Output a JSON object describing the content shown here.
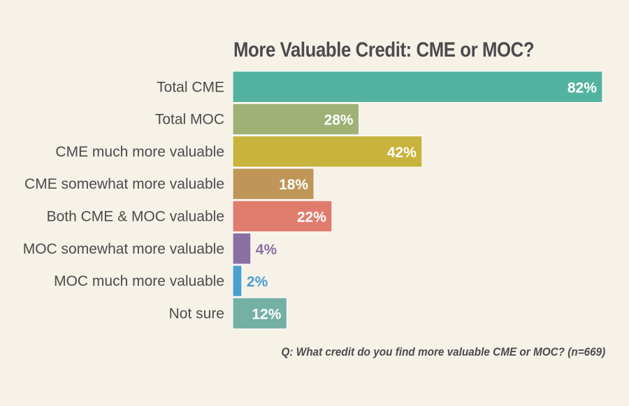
{
  "chart_data": {
    "type": "bar",
    "orientation": "horizontal",
    "title": "More Valuable Credit: CME or MOC?",
    "xlabel": "",
    "ylabel": "",
    "xlim": [
      0,
      100
    ],
    "grid": false,
    "unit": "%",
    "categories": [
      "Total CME",
      "Total MOC",
      "CME much more valuable",
      "CME somewhat more valuable",
      "Both CME & MOC valuable",
      "MOC somewhat more valuable",
      "MOC much more valuable",
      "Not sure"
    ],
    "values": [
      82,
      28,
      42,
      18,
      22,
      4,
      2,
      12
    ],
    "value_labels": [
      "82%",
      "28%",
      "42%",
      "18%",
      "22%",
      "4%",
      "2%",
      "12%"
    ],
    "colors": [
      "#54b3a0",
      "#9fb175",
      "#c8b43c",
      "#bf9658",
      "#e07c6c",
      "#8b6fa1",
      "#4a9fcf",
      "#75b0a5"
    ],
    "label_colors": [
      "#ffffff",
      "#ffffff",
      "#ffffff",
      "#ffffff",
      "#ffffff",
      "#8b6fa1",
      "#4a9fcf",
      "#ffffff"
    ],
    "label_inside": [
      true,
      true,
      true,
      true,
      true,
      false,
      false,
      true
    ],
    "footnote": "Q: What credit do you find more valuable CME or MOC? (n=669)"
  }
}
